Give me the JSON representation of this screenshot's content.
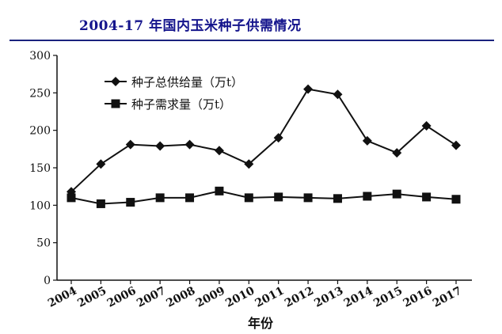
{
  "page_title": "2004-17 年国内玉米种子供需情况",
  "chart_data": {
    "type": "line",
    "title": "",
    "xlabel": "年份",
    "ylabel": "",
    "x": [
      "2004",
      "2005",
      "2006",
      "2007",
      "2008",
      "2009",
      "2010",
      "2011",
      "2012",
      "2013",
      "2014",
      "2015",
      "2016",
      "2017"
    ],
    "ylim": [
      0,
      300
    ],
    "yticks": [
      0,
      50,
      100,
      150,
      200,
      250,
      300
    ],
    "grid": false,
    "legend": "top-left",
    "series": [
      {
        "name": "种子总供给量（万t）",
        "marker": "diamond",
        "color": "#111111",
        "values": [
          118,
          155,
          181,
          179,
          181,
          173,
          155,
          190,
          255,
          248,
          186,
          170,
          206,
          180
        ]
      },
      {
        "name": "种子需求量（万t）",
        "marker": "square",
        "color": "#111111",
        "values": [
          110,
          102,
          104,
          110,
          110,
          119,
          110,
          111,
          110,
          109,
          112,
          115,
          111,
          108
        ]
      }
    ]
  }
}
